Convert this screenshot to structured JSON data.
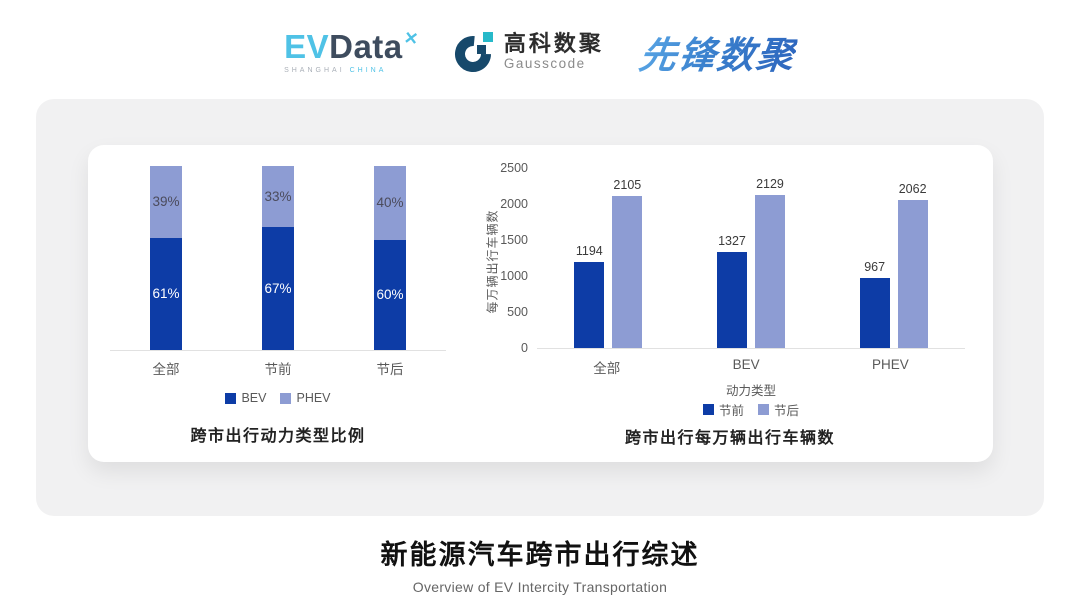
{
  "header": {
    "evdata": {
      "part1": "EV",
      "part2": "Data",
      "mark": "✕",
      "sub_left": "SHANGHAI",
      "sub_right": "CHINA"
    },
    "gausscode": {
      "name_cn": "高科数聚",
      "name_en": "Gausscode"
    },
    "pioneer": {
      "name": "先锋数聚"
    }
  },
  "colors": {
    "primary_dark_blue": "#0d3ca6",
    "secondary_periwinkle": "#8d9cd3",
    "card_gray": "#f1f1f2",
    "axis_gray": "#595959",
    "evdata_cyan": "#4fc2e6",
    "gauss_navy": "#17496b",
    "gauss_cyan": "#27b9c9"
  },
  "chart_data": [
    {
      "type": "bar",
      "subtype": "stacked-100-percent",
      "title": "跨市出行动力类型比例",
      "categories": [
        "全部",
        "节前",
        "节后"
      ],
      "series": [
        {
          "name": "BEV",
          "color": "#0d3ca6",
          "label_color": "#ffffff",
          "values": [
            61,
            67,
            60
          ]
        },
        {
          "name": "PHEV",
          "color": "#8d9cd3",
          "label_color": "#4b4b5c",
          "values": [
            39,
            33,
            40
          ]
        }
      ],
      "value_suffix": "%",
      "ylim": [
        0,
        100
      ],
      "grid": false,
      "legend_position": "bottom"
    },
    {
      "type": "bar",
      "subtype": "grouped",
      "title": "跨市出行每万辆出行车辆数",
      "categories": [
        "全部",
        "BEV",
        "PHEV"
      ],
      "xlabel": "动力类型",
      "ylabel": "每万辆出行车辆数",
      "ylim": [
        0,
        2500
      ],
      "yticks": [
        0,
        500,
        1000,
        1500,
        2000,
        2500
      ],
      "series": [
        {
          "name": "节前",
          "color": "#0d3ca6",
          "values": [
            1194,
            1327,
            967
          ]
        },
        {
          "name": "节后",
          "color": "#8d9cd3",
          "values": [
            2105,
            2129,
            2062
          ]
        }
      ],
      "grid": false,
      "legend_position": "bottom"
    }
  ],
  "footer": {
    "title": "新能源汽车跨市出行综述",
    "subtitle": "Overview of EV Intercity Transportation"
  }
}
